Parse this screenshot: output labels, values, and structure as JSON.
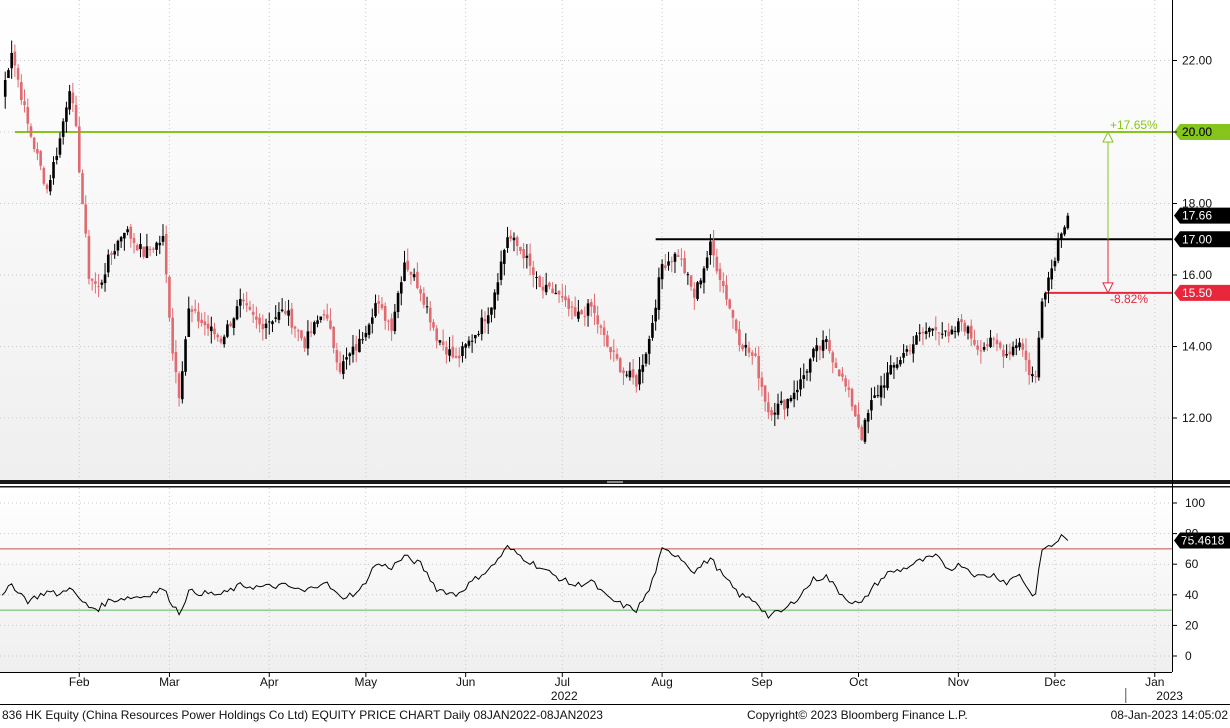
{
  "chart_data": [
    {
      "type": "candlestick",
      "ylim": [
        10.6,
        23.6
      ],
      "yticks": [
        22,
        20,
        18,
        16,
        14,
        12
      ],
      "ytick_labels": [
        "22.00",
        "20.00",
        "18.00",
        "16.00",
        "14.00",
        "12.00"
      ],
      "x_months": [
        {
          "label": "Feb",
          "day": 24
        },
        {
          "label": "Mar",
          "day": 52
        },
        {
          "label": "Apr",
          "day": 83
        },
        {
          "label": "May",
          "day": 113
        },
        {
          "label": "Jun",
          "day": 144
        },
        {
          "label": "Jul",
          "day": 174
        },
        {
          "label": "Aug",
          "day": 205
        },
        {
          "label": "Sep",
          "day": 236
        },
        {
          "label": "Oct",
          "day": 266
        },
        {
          "label": "Nov",
          "day": 297
        },
        {
          "label": "Dec",
          "day": 327
        },
        {
          "label": "Jan",
          "day": 358
        }
      ],
      "year_labels": [
        {
          "label": "2022",
          "day": 174
        },
        {
          "label": "2023",
          "day": 362
        }
      ],
      "close_keypoints": [
        {
          "day": 0,
          "close": 21.0
        },
        {
          "day": 3,
          "close": 22.3
        },
        {
          "day": 8,
          "close": 20.2
        },
        {
          "day": 14,
          "close": 18.4
        },
        {
          "day": 18,
          "close": 19.8
        },
        {
          "day": 21,
          "close": 21.3
        },
        {
          "day": 23,
          "close": 20.0
        },
        {
          "day": 27,
          "close": 16.0
        },
        {
          "day": 30,
          "close": 15.6
        },
        {
          "day": 33,
          "close": 16.4
        },
        {
          "day": 38,
          "close": 17.3
        },
        {
          "day": 44,
          "close": 16.6
        },
        {
          "day": 50,
          "close": 17.0
        },
        {
          "day": 53,
          "close": 13.9
        },
        {
          "day": 55,
          "close": 12.7
        },
        {
          "day": 58,
          "close": 15.0
        },
        {
          "day": 63,
          "close": 14.6
        },
        {
          "day": 68,
          "close": 14.2
        },
        {
          "day": 74,
          "close": 15.2
        },
        {
          "day": 80,
          "close": 14.6
        },
        {
          "day": 88,
          "close": 15.0
        },
        {
          "day": 94,
          "close": 14.1
        },
        {
          "day": 100,
          "close": 15.0
        },
        {
          "day": 105,
          "close": 13.4
        },
        {
          "day": 111,
          "close": 14.1
        },
        {
          "day": 116,
          "close": 15.2
        },
        {
          "day": 121,
          "close": 14.6
        },
        {
          "day": 125,
          "close": 16.4
        },
        {
          "day": 130,
          "close": 15.6
        },
        {
          "day": 135,
          "close": 14.3
        },
        {
          "day": 141,
          "close": 13.6
        },
        {
          "day": 148,
          "close": 14.5
        },
        {
          "day": 152,
          "close": 15.2
        },
        {
          "day": 157,
          "close": 17.1
        },
        {
          "day": 162,
          "close": 16.6
        },
        {
          "day": 167,
          "close": 15.6
        },
        {
          "day": 172,
          "close": 15.5
        },
        {
          "day": 178,
          "close": 14.8
        },
        {
          "day": 183,
          "close": 15.1
        },
        {
          "day": 188,
          "close": 14.0
        },
        {
          "day": 193,
          "close": 13.3
        },
        {
          "day": 197,
          "close": 13.0
        },
        {
          "day": 201,
          "close": 14.2
        },
        {
          "day": 205,
          "close": 16.3
        },
        {
          "day": 210,
          "close": 16.6
        },
        {
          "day": 215,
          "close": 15.4
        },
        {
          "day": 220,
          "close": 16.8
        },
        {
          "day": 224,
          "close": 15.7
        },
        {
          "day": 229,
          "close": 14.2
        },
        {
          "day": 234,
          "close": 13.6
        },
        {
          "day": 238,
          "close": 12.2
        },
        {
          "day": 243,
          "close": 12.4
        },
        {
          "day": 248,
          "close": 13.0
        },
        {
          "day": 252,
          "close": 13.8
        },
        {
          "day": 256,
          "close": 14.1
        },
        {
          "day": 260,
          "close": 13.3
        },
        {
          "day": 264,
          "close": 12.4
        },
        {
          "day": 267,
          "close": 11.5
        },
        {
          "day": 270,
          "close": 12.4
        },
        {
          "day": 275,
          "close": 13.2
        },
        {
          "day": 280,
          "close": 13.8
        },
        {
          "day": 285,
          "close": 14.3
        },
        {
          "day": 290,
          "close": 14.6
        },
        {
          "day": 294,
          "close": 14.2
        },
        {
          "day": 298,
          "close": 14.7
        },
        {
          "day": 303,
          "close": 14.0
        },
        {
          "day": 308,
          "close": 14.1
        },
        {
          "day": 312,
          "close": 13.8
        },
        {
          "day": 316,
          "close": 14.2
        },
        {
          "day": 319,
          "close": 13.3
        },
        {
          "day": 321,
          "close": 13.1
        },
        {
          "day": 323,
          "close": 15.4
        },
        {
          "day": 326,
          "close": 16.2
        },
        {
          "day": 329,
          "close": 17.3
        },
        {
          "day": 331,
          "close": 17.66
        }
      ],
      "horizontal_lines": [
        {
          "value": 20.0,
          "label": "20.00",
          "color": "#86c51c",
          "x_start_day": 4,
          "note": "+17.65%"
        },
        {
          "value": 17.0,
          "label": "17.00",
          "color": "#000000",
          "x_start_day": 203
        },
        {
          "value": 15.5,
          "label": "15.50",
          "color": "#e8263c",
          "x_start_day": 324,
          "note": "-8.82%"
        }
      ],
      "last_price": {
        "value": 17.66,
        "label": "17.66"
      },
      "up_color": "#000000",
      "down_color": "#e06a70",
      "grid": true
    },
    {
      "type": "line",
      "name": "RSI",
      "ylim": [
        -5,
        105
      ],
      "yticks": [
        100,
        80,
        60,
        40,
        20,
        0
      ],
      "ytick_labels": [
        "100",
        "80",
        "60",
        "40",
        "20",
        "0"
      ],
      "reference_lines": [
        {
          "value": 70,
          "color": "#c0504d"
        },
        {
          "value": 30,
          "color": "#5cb85c"
        }
      ],
      "last_value": {
        "value": 75.4618,
        "label": "75.4618"
      },
      "rsi_keypoints": [
        {
          "day": 0,
          "v": 38
        },
        {
          "day": 3,
          "v": 47
        },
        {
          "day": 8,
          "v": 36
        },
        {
          "day": 14,
          "v": 42
        },
        {
          "day": 18,
          "v": 40
        },
        {
          "day": 21,
          "v": 46
        },
        {
          "day": 23,
          "v": 39
        },
        {
          "day": 27,
          "v": 32
        },
        {
          "day": 30,
          "v": 31
        },
        {
          "day": 33,
          "v": 36
        },
        {
          "day": 38,
          "v": 38
        },
        {
          "day": 44,
          "v": 39
        },
        {
          "day": 50,
          "v": 44
        },
        {
          "day": 53,
          "v": 34
        },
        {
          "day": 55,
          "v": 28
        },
        {
          "day": 58,
          "v": 42
        },
        {
          "day": 63,
          "v": 41
        },
        {
          "day": 68,
          "v": 40
        },
        {
          "day": 74,
          "v": 46
        },
        {
          "day": 80,
          "v": 45
        },
        {
          "day": 88,
          "v": 46
        },
        {
          "day": 94,
          "v": 42
        },
        {
          "day": 100,
          "v": 49
        },
        {
          "day": 105,
          "v": 38
        },
        {
          "day": 111,
          "v": 42
        },
        {
          "day": 116,
          "v": 60
        },
        {
          "day": 121,
          "v": 58
        },
        {
          "day": 125,
          "v": 65
        },
        {
          "day": 130,
          "v": 60
        },
        {
          "day": 135,
          "v": 44
        },
        {
          "day": 141,
          "v": 40
        },
        {
          "day": 148,
          "v": 52
        },
        {
          "day": 152,
          "v": 58
        },
        {
          "day": 157,
          "v": 71
        },
        {
          "day": 162,
          "v": 64
        },
        {
          "day": 167,
          "v": 58
        },
        {
          "day": 172,
          "v": 52
        },
        {
          "day": 178,
          "v": 46
        },
        {
          "day": 183,
          "v": 49
        },
        {
          "day": 188,
          "v": 38
        },
        {
          "day": 193,
          "v": 33
        },
        {
          "day": 197,
          "v": 30
        },
        {
          "day": 201,
          "v": 43
        },
        {
          "day": 205,
          "v": 69
        },
        {
          "day": 210,
          "v": 66
        },
        {
          "day": 215,
          "v": 55
        },
        {
          "day": 220,
          "v": 64
        },
        {
          "day": 224,
          "v": 52
        },
        {
          "day": 229,
          "v": 40
        },
        {
          "day": 234,
          "v": 36
        },
        {
          "day": 238,
          "v": 26
        },
        {
          "day": 243,
          "v": 30
        },
        {
          "day": 248,
          "v": 40
        },
        {
          "day": 252,
          "v": 50
        },
        {
          "day": 256,
          "v": 52
        },
        {
          "day": 260,
          "v": 42
        },
        {
          "day": 264,
          "v": 35
        },
        {
          "day": 267,
          "v": 34
        },
        {
          "day": 270,
          "v": 44
        },
        {
          "day": 275,
          "v": 54
        },
        {
          "day": 280,
          "v": 57
        },
        {
          "day": 285,
          "v": 62
        },
        {
          "day": 290,
          "v": 65
        },
        {
          "day": 294,
          "v": 57
        },
        {
          "day": 298,
          "v": 60
        },
        {
          "day": 303,
          "v": 52
        },
        {
          "day": 308,
          "v": 53
        },
        {
          "day": 312,
          "v": 48
        },
        {
          "day": 316,
          "v": 54
        },
        {
          "day": 319,
          "v": 42
        },
        {
          "day": 321,
          "v": 40
        },
        {
          "day": 323,
          "v": 70
        },
        {
          "day": 326,
          "v": 72
        },
        {
          "day": 329,
          "v": 78
        },
        {
          "day": 331,
          "v": 75.46
        }
      ]
    }
  ],
  "annotations": {
    "up_pct": "+17.65%",
    "down_pct": "-8.82%"
  },
  "footer": {
    "title": "836 HK Equity (China Resources Power Holdings Co Ltd) EQUITY PRICE CHART  Daily 08JAN2022-08JAN2023",
    "copyright": "Copyright© 2023 Bloomberg Finance L.P.",
    "timestamp": "08-Jan-2023 14:05:02"
  }
}
